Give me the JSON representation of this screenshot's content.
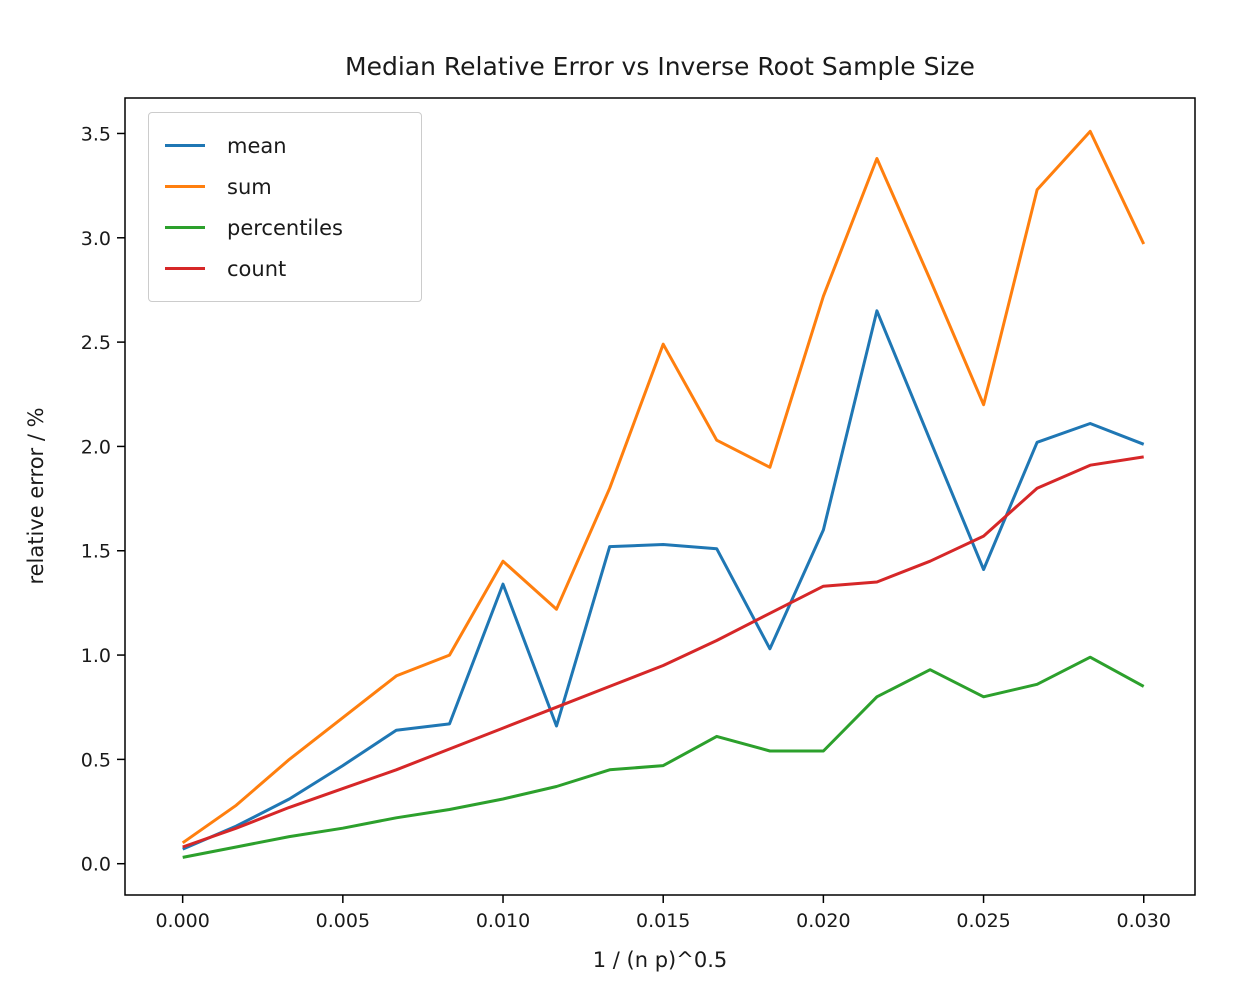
{
  "chart_data": {
    "type": "line",
    "title": "Median Relative Error vs Inverse Root Sample Size",
    "xlabel": "1 / (n p)^0.5",
    "ylabel": "relative error / %",
    "grid": false,
    "legend_position": "upper left",
    "xlim": [
      -0.0018,
      0.0316
    ],
    "ylim": [
      -0.15,
      3.67
    ],
    "xticks": [
      0.0,
      0.005,
      0.01,
      0.015,
      0.02,
      0.025,
      0.03
    ],
    "xtick_labels": [
      "0.000",
      "0.005",
      "0.010",
      "0.015",
      "0.020",
      "0.025",
      "0.030"
    ],
    "yticks": [
      0.0,
      0.5,
      1.0,
      1.5,
      2.0,
      2.5,
      3.0,
      3.5
    ],
    "ytick_labels": [
      "0.0",
      "0.5",
      "1.0",
      "1.5",
      "2.0",
      "2.5",
      "3.0",
      "3.5"
    ],
    "x": [
      0.0,
      0.00167,
      0.00333,
      0.005,
      0.00667,
      0.00833,
      0.01,
      0.01167,
      0.01333,
      0.015,
      0.01667,
      0.01833,
      0.02,
      0.02167,
      0.02333,
      0.025,
      0.02667,
      0.02833,
      0.03
    ],
    "series": [
      {
        "name": "mean",
        "color": "#1f77b4",
        "values": [
          0.07,
          0.18,
          0.31,
          0.47,
          0.64,
          0.67,
          1.34,
          0.66,
          1.52,
          1.53,
          1.51,
          1.03,
          1.6,
          2.65,
          2.03,
          1.41,
          2.02,
          2.11,
          2.01
        ]
      },
      {
        "name": "sum",
        "color": "#ff7f0e",
        "values": [
          0.1,
          0.28,
          0.5,
          0.7,
          0.9,
          1.0,
          1.45,
          1.22,
          1.8,
          2.49,
          2.03,
          1.9,
          2.72,
          3.38,
          2.8,
          2.2,
          3.23,
          3.51,
          2.97
        ]
      },
      {
        "name": "percentiles",
        "color": "#2ca02c",
        "values": [
          0.03,
          0.08,
          0.13,
          0.17,
          0.22,
          0.26,
          0.31,
          0.37,
          0.45,
          0.47,
          0.61,
          0.54,
          0.54,
          0.8,
          0.93,
          0.8,
          0.86,
          0.99,
          0.85
        ]
      },
      {
        "name": "count",
        "color": "#d62728",
        "values": [
          0.08,
          0.17,
          0.27,
          0.36,
          0.45,
          0.55,
          0.65,
          0.75,
          0.85,
          0.95,
          1.07,
          1.2,
          1.33,
          1.35,
          1.45,
          1.57,
          1.8,
          1.91,
          1.95
        ]
      }
    ]
  }
}
